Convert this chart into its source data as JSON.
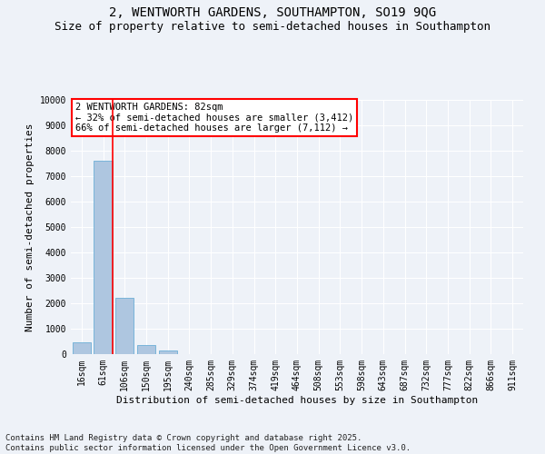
{
  "title_line1": "2, WENTWORTH GARDENS, SOUTHAMPTON, SO19 9QG",
  "title_line2": "Size of property relative to semi-detached houses in Southampton",
  "xlabel": "Distribution of semi-detached houses by size in Southampton",
  "ylabel": "Number of semi-detached properties",
  "categories": [
    "16sqm",
    "61sqm",
    "106sqm",
    "150sqm",
    "195sqm",
    "240sqm",
    "285sqm",
    "329sqm",
    "374sqm",
    "419sqm",
    "464sqm",
    "508sqm",
    "553sqm",
    "598sqm",
    "643sqm",
    "687sqm",
    "732sqm",
    "777sqm",
    "822sqm",
    "866sqm",
    "911sqm"
  ],
  "values": [
    480,
    7600,
    2230,
    370,
    130,
    0,
    0,
    0,
    0,
    0,
    0,
    0,
    0,
    0,
    0,
    0,
    0,
    0,
    0,
    0,
    0
  ],
  "bar_color": "#aec6e0",
  "bar_edge_color": "#6baed6",
  "property_line_x": 1,
  "annotation_title": "2 WENTWORTH GARDENS: 82sqm",
  "annotation_line1": "← 32% of semi-detached houses are smaller (3,412)",
  "annotation_line2": "66% of semi-detached houses are larger (7,112) →",
  "ylim": [
    0,
    10000
  ],
  "yticks": [
    0,
    1000,
    2000,
    3000,
    4000,
    5000,
    6000,
    7000,
    8000,
    9000,
    10000
  ],
  "footer": "Contains HM Land Registry data © Crown copyright and database right 2025.\nContains public sector information licensed under the Open Government Licence v3.0.",
  "bg_color": "#eef2f8",
  "plot_bg_color": "#eef2f8",
  "grid_color": "#ffffff",
  "title_fontsize": 10,
  "subtitle_fontsize": 9,
  "axis_label_fontsize": 8,
  "tick_fontsize": 7,
  "annotation_fontsize": 7.5,
  "footer_fontsize": 6.5
}
